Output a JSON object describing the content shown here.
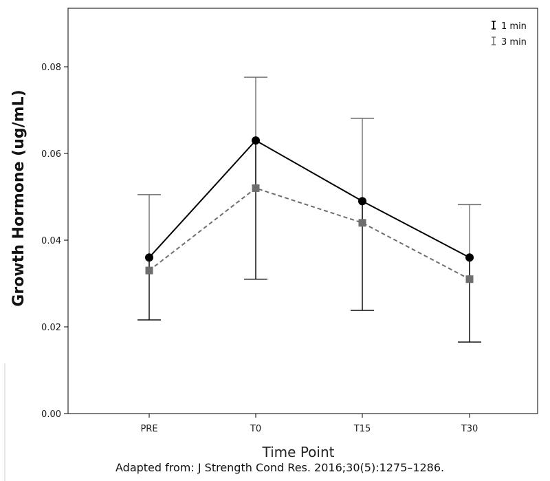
{
  "chart_data": {
    "type": "line",
    "categories": [
      "PRE",
      "T0",
      "T15",
      "T30"
    ],
    "xlabel": "Time Point",
    "ylabel": "Growth Hormone (ug/mL)",
    "ylim": [
      0,
      0.0935
    ],
    "yticks": [
      "0.00",
      "0.02",
      "0.04",
      "0.06",
      "0.08"
    ],
    "grid": false,
    "legend_position": "top-right",
    "series": [
      {
        "name": "1 min",
        "values": [
          0.036,
          0.063,
          0.049,
          0.036
        ],
        "error_low": [
          0.0216,
          0.031,
          0.0238,
          0.0165
        ],
        "error_high": [
          0.0505,
          0.0776,
          0.0681,
          0.0482
        ],
        "color": "#000000",
        "marker": "circle",
        "line_style": "solid"
      },
      {
        "name": "3 min",
        "values": [
          0.033,
          0.052,
          0.044,
          0.031
        ],
        "error_low": [
          0.0216,
          0.031,
          0.0238,
          0.0165
        ],
        "error_high": [
          0.0505,
          0.0776,
          0.0681,
          0.0482
        ],
        "color": "#6e6e6e",
        "marker": "square",
        "line_style": "dashed"
      }
    ]
  },
  "caption": "Adapted from: J Strength Cond Res. 2016;30(5):1275–1286."
}
